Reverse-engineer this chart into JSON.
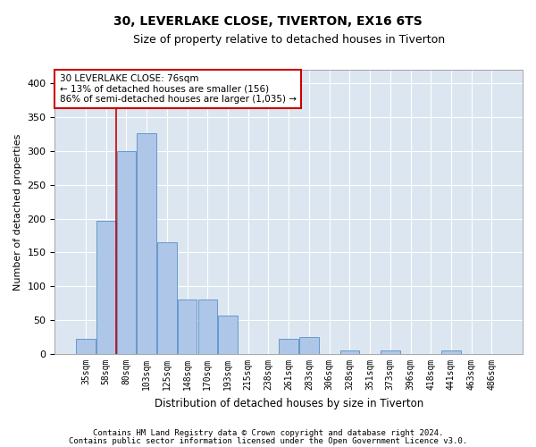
{
  "title": "30, LEVERLAKE CLOSE, TIVERTON, EX16 6TS",
  "subtitle": "Size of property relative to detached houses in Tiverton",
  "xlabel": "Distribution of detached houses by size in Tiverton",
  "ylabel": "Number of detached properties",
  "categories": [
    "35sqm",
    "58sqm",
    "80sqm",
    "103sqm",
    "125sqm",
    "148sqm",
    "170sqm",
    "193sqm",
    "215sqm",
    "238sqm",
    "261sqm",
    "283sqm",
    "306sqm",
    "328sqm",
    "351sqm",
    "373sqm",
    "396sqm",
    "418sqm",
    "441sqm",
    "463sqm",
    "486sqm"
  ],
  "values": [
    22,
    197,
    300,
    326,
    165,
    80,
    80,
    57,
    0,
    0,
    23,
    25,
    0,
    6,
    0,
    6,
    0,
    0,
    5,
    0,
    0
  ],
  "bar_color": "#aec6e8",
  "bar_edge_color": "#6699cc",
  "vline_x": 1.5,
  "vline_color": "#cc0000",
  "annotation_text": "30 LEVERLAKE CLOSE: 76sqm\n← 13% of detached houses are smaller (156)\n86% of semi-detached houses are larger (1,035) →",
  "annotation_box_color": "#ffffff",
  "annotation_box_edge": "#cc0000",
  "ylim": [
    0,
    420
  ],
  "yticks": [
    0,
    50,
    100,
    150,
    200,
    250,
    300,
    350,
    400
  ],
  "footer_line1": "Contains HM Land Registry data © Crown copyright and database right 2024.",
  "footer_line2": "Contains public sector information licensed under the Open Government Licence v3.0.",
  "bg_color": "#ffffff",
  "plot_bg_color": "#dce6f0"
}
